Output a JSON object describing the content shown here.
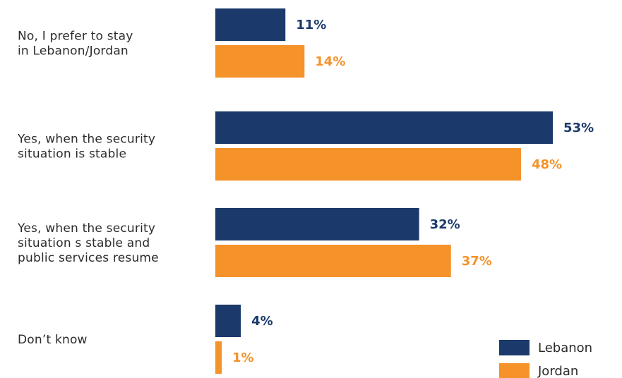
{
  "chart_data": {
    "type": "bar",
    "orientation": "horizontal",
    "categories": [
      [
        "No, I prefer to stay",
        "in Lebanon/Jordan"
      ],
      [
        "Yes, when the security",
        "situation is stable"
      ],
      [
        "Yes, when the security",
        "situation s stable and",
        "public services resume"
      ],
      [
        "Don’t know"
      ]
    ],
    "series": [
      {
        "name": "Lebanon",
        "values": [
          11,
          53,
          32,
          4
        ],
        "labels": [
          "11%",
          "53%",
          "32%",
          "4%"
        ],
        "color": "#1b3a6b"
      },
      {
        "name": "Jordan",
        "values": [
          14,
          48,
          37,
          1
        ],
        "labels": [
          "14%",
          "48%",
          "37%",
          "1%"
        ],
        "color": "#f5922a"
      }
    ],
    "unit": "%",
    "xlim": [
      0,
      56
    ],
    "grid": false,
    "legend_position": "bottom-right",
    "title": "",
    "xlabel": "",
    "ylabel": ""
  }
}
